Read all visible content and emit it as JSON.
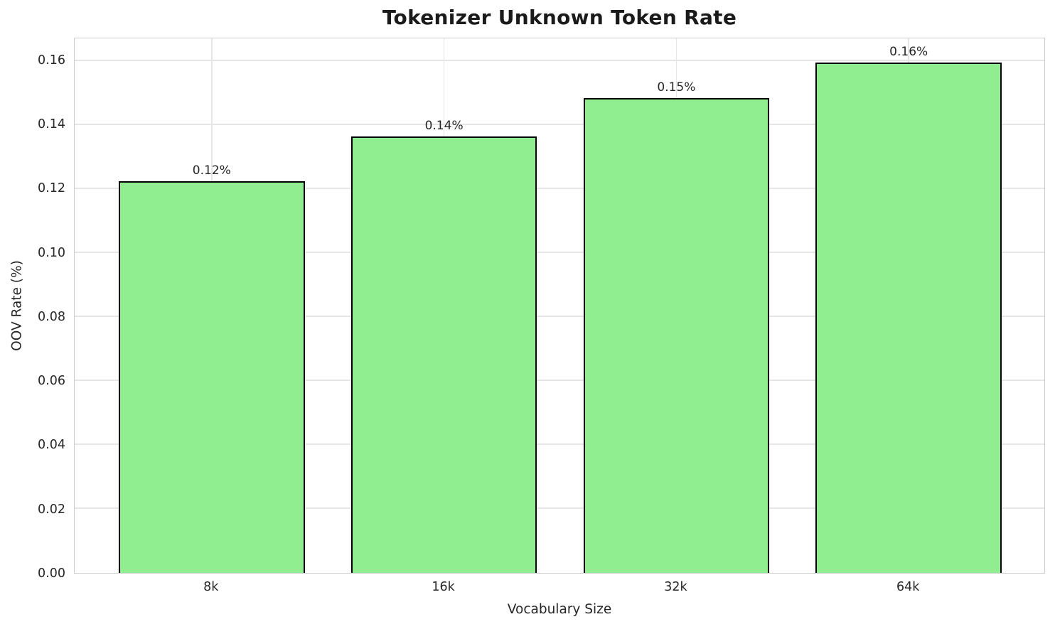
{
  "chart_data": {
    "type": "bar",
    "title": "Tokenizer Unknown Token Rate",
    "xlabel": "Vocabulary Size",
    "ylabel": "OOV Rate (%)",
    "categories": [
      "8k",
      "16k",
      "32k",
      "64k"
    ],
    "values": [
      0.122,
      0.136,
      0.148,
      0.159
    ],
    "bar_labels": [
      "0.12%",
      "0.14%",
      "0.15%",
      "0.16%"
    ],
    "ylim": [
      0,
      0.167
    ],
    "yticks": [
      0,
      0.02,
      0.04,
      0.06,
      0.08,
      0.1,
      0.12,
      0.14,
      0.16
    ],
    "ytick_labels": [
      "0.00",
      "0.02",
      "0.04",
      "0.06",
      "0.08",
      "0.10",
      "0.12",
      "0.14",
      "0.16"
    ],
    "grid": true,
    "legend_position": "none",
    "colors": {
      "bar_fill": "#90EE90",
      "bar_edge": "#000000",
      "grid_line": "#e6e6e6",
      "spine": "#cccccc",
      "text": "#262626"
    }
  }
}
